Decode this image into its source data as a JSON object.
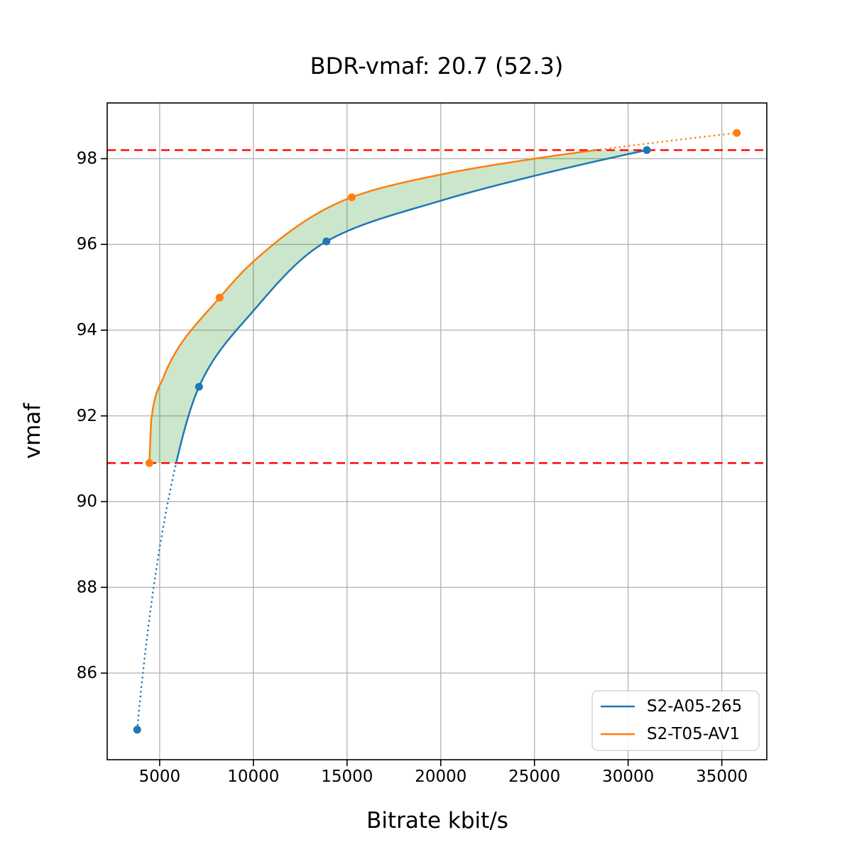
{
  "chart_data": {
    "type": "line",
    "title": "BDR-vmaf: 20.7 (52.3)",
    "xlabel": "Bitrate kbit/s",
    "ylabel": "vmaf",
    "xlim": [
      2200,
      37400
    ],
    "ylim": [
      83.98,
      99.3
    ],
    "x_ticks": [
      5000,
      10000,
      15000,
      20000,
      25000,
      30000,
      35000
    ],
    "y_ticks": [
      86,
      88,
      90,
      92,
      94,
      96,
      98
    ],
    "grid": true,
    "grid_color": "#b0b0b0",
    "background": "#ffffff",
    "legend_position": "lower right",
    "series": [
      {
        "name": "S2-A05-265",
        "color": "#1f77b4",
        "x": [
          3800,
          7100,
          13900,
          31000
        ],
        "y": [
          84.68,
          92.68,
          96.07,
          98.2
        ],
        "curve": [
          [
            3800,
            84.68
          ],
          [
            5880,
            90.9
          ],
          [
            7100,
            92.68
          ],
          [
            10000,
            94.45
          ],
          [
            13900,
            96.07
          ],
          [
            20000,
            97.02
          ],
          [
            25000,
            97.6
          ],
          [
            31000,
            98.2
          ]
        ]
      },
      {
        "name": "S2-T05-AV1",
        "color": "#ff7f0e",
        "x": [
          4450,
          8200,
          15250,
          35800
        ],
        "y": [
          90.9,
          94.76,
          97.1,
          98.6
        ],
        "curve": [
          [
            4450,
            90.9
          ],
          [
            4520,
            91.8
          ],
          [
            5200,
            92.9
          ],
          [
            8200,
            94.76
          ],
          [
            10000,
            95.6
          ],
          [
            15250,
            97.1
          ],
          [
            20000,
            97.63
          ],
          [
            25000,
            98.0
          ],
          [
            31000,
            98.35
          ],
          [
            35800,
            98.6
          ]
        ]
      }
    ],
    "overlap_hlines": {
      "values": [
        90.9,
        98.2
      ],
      "color": "#ff0000",
      "style": "dashed"
    },
    "fill_between": {
      "color": "#008000",
      "opacity": 0.2
    }
  }
}
